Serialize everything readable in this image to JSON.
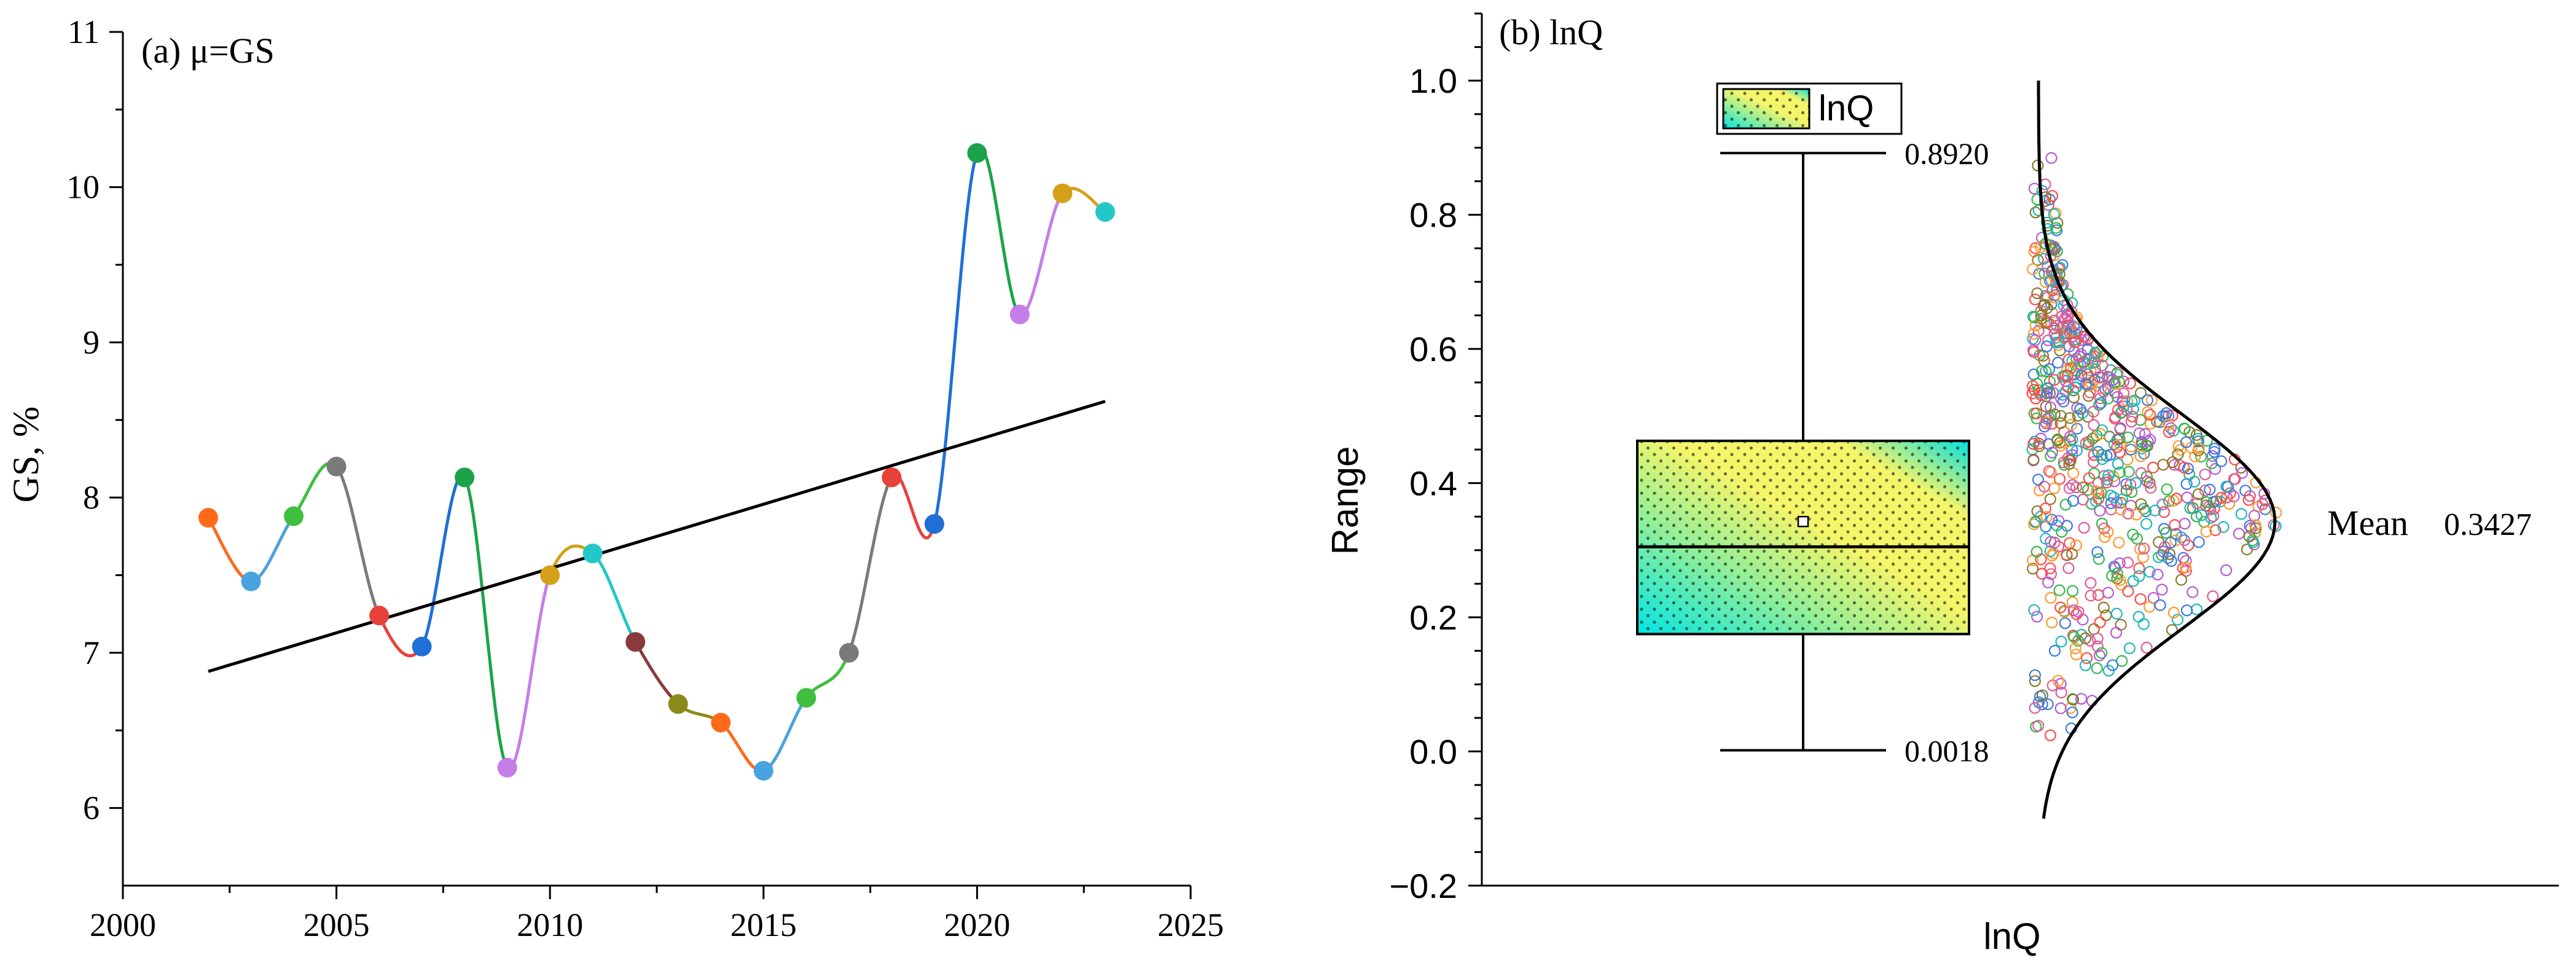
{
  "colors": {
    "axis": "#000000",
    "box_fill_stops": [
      "#00e5e5",
      "#8fef9a",
      "#f5f56a",
      "#f9f08a"
    ],
    "panel_a_palette": [
      "#ff6a1a",
      "#4aa3df",
      "#3fbf3f",
      "#7a7a7a",
      "#e8413a",
      "#1f6fd6",
      "#1ca34a",
      "#c57de8",
      "#d4a017",
      "#24c7c7",
      "#8a3a3a",
      "#8a8a1a"
    ]
  },
  "chart_data": [
    {
      "type": "line",
      "panel_label": "(a) μ=GS",
      "xlabel": "",
      "ylabel": "GS, %",
      "xlim": [
        2000,
        2025
      ],
      "ylim": [
        5.5,
        11
      ],
      "x_ticks": [
        "2000",
        "2005",
        "2010",
        "2015",
        "2020",
        "2025"
      ],
      "y_ticks": [
        "6",
        "7",
        "8",
        "9",
        "10",
        "11"
      ],
      "legend": "none",
      "grid": false,
      "series": [
        {
          "kind": "spline-points",
          "x": [
            2002,
            2003,
            2004,
            2005,
            2006,
            2007,
            2008,
            2009,
            2010,
            2011,
            2012,
            2013,
            2014,
            2015,
            2016,
            2017,
            2018,
            2019,
            2020,
            2021,
            2022,
            2023
          ],
          "y": [
            7.87,
            7.46,
            7.88,
            8.2,
            7.24,
            7.04,
            8.13,
            6.26,
            7.5,
            7.64,
            7.07,
            6.67,
            6.55,
            6.24,
            6.71,
            7.0,
            8.13,
            7.83,
            10.22,
            9.18,
            9.96,
            9.84
          ]
        },
        {
          "kind": "trend",
          "x": [
            2002,
            2023
          ],
          "y": [
            6.88,
            8.62
          ]
        }
      ]
    },
    {
      "type": "box",
      "panel_label": "(b) lnQ",
      "xlabel": "lnQ",
      "ylabel": "Range",
      "categories": [
        "lnQ"
      ],
      "legend_label": "lnQ",
      "legend": "top-center",
      "ylim": [
        -0.2,
        1.1
      ],
      "y_ticks": [
        "−0.2",
        "0.0",
        "0.2",
        "0.4",
        "0.6",
        "0.8",
        "1.0"
      ],
      "box": {
        "min": 0.0018,
        "q1": 0.175,
        "median": 0.305,
        "q3": 0.463,
        "max": 0.892,
        "mean": 0.3427
      },
      "annotations": {
        "max_label": "0.8920",
        "min_label": "0.0018",
        "mean_label": "Mean",
        "mean_value": "0.3427"
      },
      "normal_curve": {
        "mean": 0.3427,
        "sd": 0.16,
        "from": -0.1,
        "to": 1.0
      },
      "scatter_note": "jittered raw observations between 0.0018 and 0.8920"
    }
  ]
}
